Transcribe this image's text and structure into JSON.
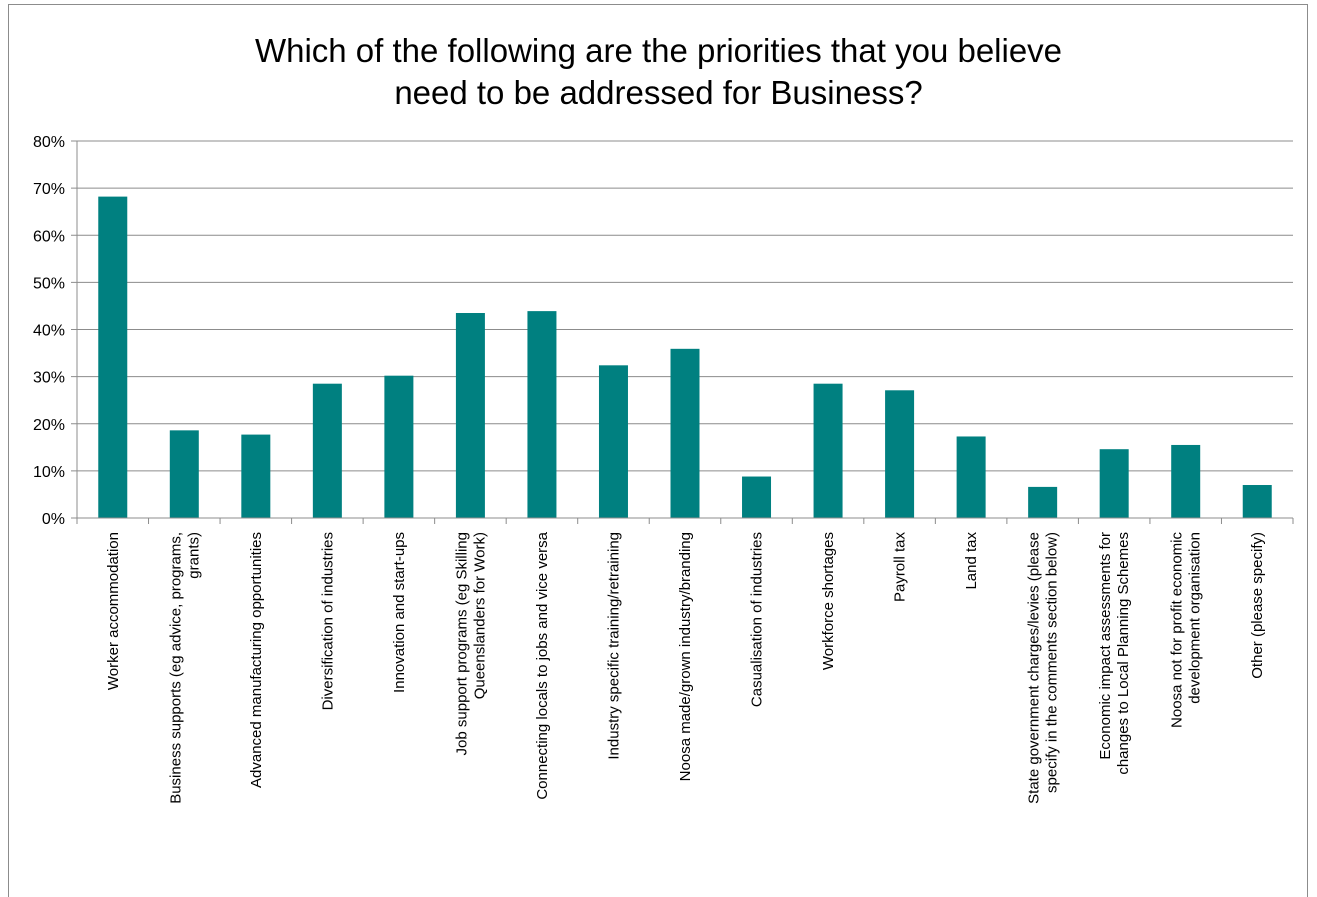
{
  "chart_data": {
    "type": "bar",
    "title_lines": [
      "Which of the following are the priorities that you believe",
      "need to be addressed for Business?"
    ],
    "ylim": [
      0,
      80
    ],
    "yticks": [
      "0%",
      "10%",
      "20%",
      "30%",
      "40%",
      "50%",
      "60%",
      "70%",
      "80%"
    ],
    "grid": true,
    "bar_color": "#008080",
    "categories": [
      [
        "Worker accommodation"
      ],
      [
        "Business supports (eg advice, programs,",
        "grants)"
      ],
      [
        "Advanced manufacturing opportunities"
      ],
      [
        "Diversification of industries"
      ],
      [
        "Innovation and start-ups"
      ],
      [
        "Job support programs (eg Skilling",
        "Queenslanders for Work)"
      ],
      [
        "Connecting locals to jobs and vice versa"
      ],
      [
        "Industry specific training/retraining"
      ],
      [
        "Noosa made/grown industry/branding"
      ],
      [
        "Casualisation of industries"
      ],
      [
        "Workforce shortages"
      ],
      [
        "Payroll tax"
      ],
      [
        "Land tax"
      ],
      [
        "State government charges/levies (please",
        "specify in the comments section below)"
      ],
      [
        "Economic impact assessments for",
        "changes to Local Planning Schemes"
      ],
      [
        "Noosa not for profit economic",
        "development organisation"
      ],
      [
        "Other (please specify)"
      ]
    ],
    "values": [
      68.2,
      18.6,
      17.7,
      28.5,
      30.2,
      43.5,
      43.9,
      32.4,
      35.9,
      8.8,
      28.5,
      27.1,
      17.3,
      6.6,
      14.6,
      15.5,
      7.0
    ]
  }
}
